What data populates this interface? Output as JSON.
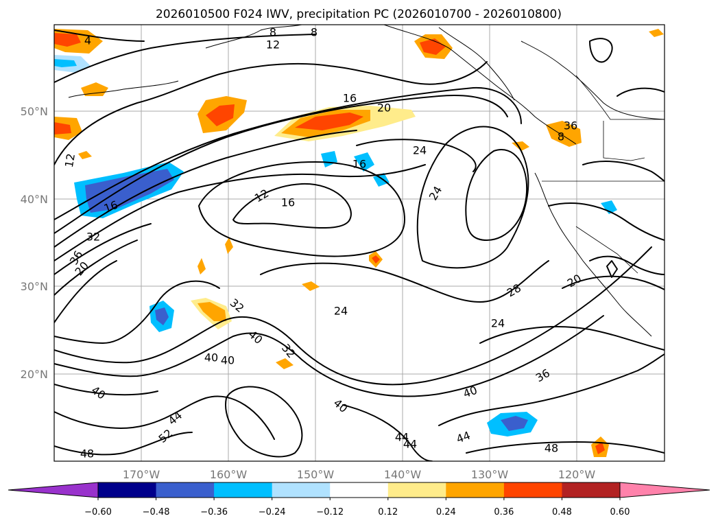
{
  "title": "2026010500 F024 IWV, precipitation PC (2026010700 - 2026010800)",
  "map": {
    "lat_labels": [
      "50°N",
      "40°N",
      "30°N",
      "20°N"
    ],
    "lon_labels": [
      "170°W",
      "160°W",
      "150°W",
      "140°W",
      "130°W",
      "120°W"
    ]
  },
  "contour_labels": [
    "4",
    "8",
    "8",
    "8",
    "12",
    "12",
    "12",
    "16",
    "16",
    "16",
    "16",
    "20",
    "20",
    "20",
    "24",
    "24",
    "24",
    "24",
    "28",
    "32",
    "32",
    "32",
    "36",
    "36",
    "36",
    "40",
    "40",
    "40",
    "40",
    "40",
    "40",
    "44",
    "44",
    "44",
    "44",
    "48",
    "48",
    "52"
  ],
  "colorbar": {
    "ticks": [
      "−0.60",
      "−0.48",
      "−0.36",
      "−0.24",
      "−0.12",
      "0.12",
      "0.24",
      "0.36",
      "0.48",
      "0.60"
    ],
    "colors": [
      "#9932cc",
      "#00008b",
      "#3a5fcd",
      "#00bfff",
      "#b0e2ff",
      "#ffffff",
      "#ffec8b",
      "#ffa500",
      "#ff4500",
      "#b22222",
      "#ff82ab",
      "#ff82ab"
    ]
  }
}
